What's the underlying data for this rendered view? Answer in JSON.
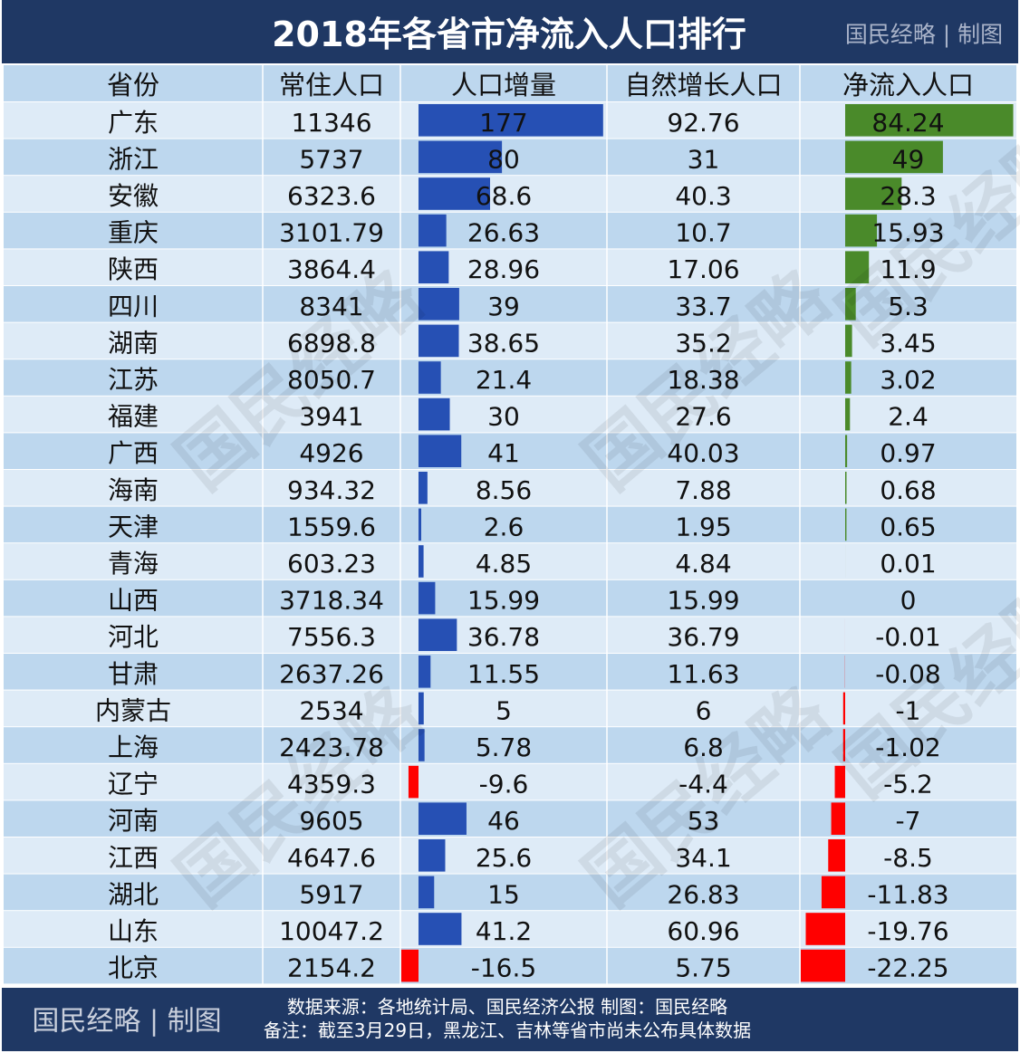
{
  "header": {
    "title": "2018年各省市净流入人口排行",
    "brand": "国民经略 | 制图"
  },
  "table": {
    "columns": [
      "省份",
      "常住人口",
      "人口增量",
      "自然增长人口",
      "净流入人口"
    ],
    "rows": [
      [
        "广东",
        11346,
        177,
        92.76,
        84.24
      ],
      [
        "浙江",
        5737,
        80,
        31,
        49
      ],
      [
        "安徽",
        6323.6,
        68.6,
        40.3,
        28.3
      ],
      [
        "重庆",
        3101.79,
        26.63,
        10.7,
        15.93
      ],
      [
        "陕西",
        3864.4,
        28.96,
        17.06,
        11.9
      ],
      [
        "四川",
        8341,
        39,
        33.7,
        5.3
      ],
      [
        "湖南",
        6898.8,
        38.65,
        35.2,
        3.45
      ],
      [
        "江苏",
        8050.7,
        21.4,
        18.38,
        3.02
      ],
      [
        "福建",
        3941,
        30,
        27.6,
        2.4
      ],
      [
        "广西",
        4926,
        41,
        40.03,
        0.97
      ],
      [
        "海南",
        934.32,
        8.56,
        7.88,
        0.68
      ],
      [
        "天津",
        1559.6,
        2.6,
        1.95,
        0.65
      ],
      [
        "青海",
        603.23,
        4.85,
        4.84,
        0.01
      ],
      [
        "山西",
        3718.34,
        15.99,
        15.99,
        0
      ],
      [
        "河北",
        7556.3,
        36.78,
        36.79,
        -0.01
      ],
      [
        "甘肃",
        2637.26,
        11.55,
        11.63,
        -0.08
      ],
      [
        "内蒙古",
        2534,
        5,
        6,
        -1
      ],
      [
        "上海",
        2423.78,
        5.78,
        6.8,
        -1.02
      ],
      [
        "辽宁",
        4359.3,
        -9.6,
        -4.4,
        -5.2
      ],
      [
        "河南",
        9605,
        46,
        53,
        -7
      ],
      [
        "江西",
        4647.6,
        25.6,
        34.1,
        -8.5
      ],
      [
        "湖北",
        5917,
        15,
        26.83,
        -11.83
      ],
      [
        "山东",
        10047.2,
        41.2,
        60.96,
        -19.76
      ],
      [
        "北京",
        2154.2,
        -16.5,
        5.75,
        -22.25
      ]
    ]
  },
  "footer": {
    "brand": "国民经略 | 制图",
    "source": "数据来源：各地统计局、国民经济公报  制图：国民经略",
    "note": "备注：截至3月29日，黑龙江、吉林等省市尚未公布具体数据"
  },
  "watermark": "国民经略"
}
